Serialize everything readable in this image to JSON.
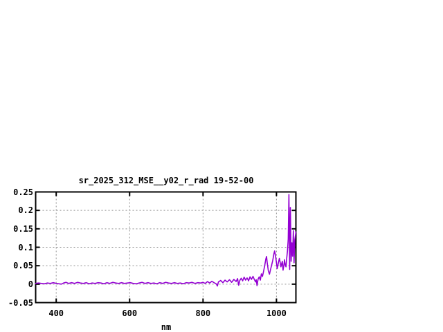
{
  "window": {
    "background_color": "#ffffff"
  },
  "chart_data": {
    "type": "line",
    "title": "sr_2025_312_MSE__y02_r_rad 19-52-00",
    "xlabel": "nm",
    "ylabel": "",
    "xlim": [
      344,
      1053
    ],
    "ylim": [
      -0.05,
      0.25
    ],
    "grid": true,
    "legend": "none",
    "line_color": "#9400d3",
    "border_color": "#000000",
    "grid_color": "#909090",
    "xticks": [
      {
        "v": 400,
        "label": "400"
      },
      {
        "v": 600,
        "label": "600"
      },
      {
        "v": 800,
        "label": "800"
      },
      {
        "v": 1000,
        "label": "1000"
      }
    ],
    "yticks": [
      {
        "v": -0.05,
        "label": "-0.05"
      },
      {
        "v": 0,
        "label": "0"
      },
      {
        "v": 0.05,
        "label": "0.05"
      },
      {
        "v": 0.1,
        "label": "0.1"
      },
      {
        "v": 0.15,
        "label": "0.15"
      },
      {
        "v": 0.2,
        "label": "0.2"
      },
      {
        "v": 0.25,
        "label": "0.25"
      }
    ],
    "series": [
      {
        "points": [
          [
            344,
            0.002
          ],
          [
            352,
            0.003
          ],
          [
            360,
            0.002
          ],
          [
            368,
            0.001
          ],
          [
            376,
            0.003
          ],
          [
            384,
            0.002
          ],
          [
            392,
            0.004
          ],
          [
            400,
            0.002
          ],
          [
            408,
            0.001
          ],
          [
            414,
            0.0
          ],
          [
            420,
            0.003
          ],
          [
            427,
            0.005
          ],
          [
            434,
            0.002
          ],
          [
            442,
            0.004
          ],
          [
            450,
            0.002
          ],
          [
            458,
            0.005
          ],
          [
            466,
            0.003
          ],
          [
            474,
            0.002
          ],
          [
            482,
            0.004
          ],
          [
            490,
            0.001
          ],
          [
            498,
            0.003
          ],
          [
            506,
            0.002
          ],
          [
            514,
            0.004
          ],
          [
            522,
            0.003
          ],
          [
            530,
            0.001
          ],
          [
            538,
            0.004
          ],
          [
            546,
            0.002
          ],
          [
            554,
            0.005
          ],
          [
            562,
            0.003
          ],
          [
            570,
            0.002
          ],
          [
            578,
            0.004
          ],
          [
            586,
            0.002
          ],
          [
            594,
            0.003
          ],
          [
            602,
            0.004
          ],
          [
            610,
            0.002
          ],
          [
            618,
            0.001
          ],
          [
            626,
            0.003
          ],
          [
            634,
            0.005
          ],
          [
            642,
            0.002
          ],
          [
            650,
            0.004
          ],
          [
            658,
            0.002
          ],
          [
            666,
            0.003
          ],
          [
            674,
            0.001
          ],
          [
            682,
            0.004
          ],
          [
            690,
            0.002
          ],
          [
            698,
            0.005
          ],
          [
            706,
            0.003
          ],
          [
            714,
            0.002
          ],
          [
            722,
            0.004
          ],
          [
            730,
            0.002
          ],
          [
            738,
            0.003
          ],
          [
            746,
            0.001
          ],
          [
            754,
            0.004
          ],
          [
            762,
            0.003
          ],
          [
            770,
            0.005
          ],
          [
            778,
            0.002
          ],
          [
            786,
            0.004
          ],
          [
            794,
            0.003
          ],
          [
            800,
            0.005
          ],
          [
            806,
            0.002
          ],
          [
            812,
            0.007
          ],
          [
            818,
            0.003
          ],
          [
            824,
            0.008
          ],
          [
            830,
            0.004
          ],
          [
            836,
            0.001
          ],
          [
            839,
            -0.005
          ],
          [
            842,
            0.006
          ],
          [
            848,
            0.01
          ],
          [
            854,
            0.004
          ],
          [
            860,
            0.011
          ],
          [
            866,
            0.006
          ],
          [
            872,
            0.012
          ],
          [
            878,
            0.005
          ],
          [
            884,
            0.013
          ],
          [
            890,
            0.007
          ],
          [
            894,
            0.015
          ],
          [
            897,
            -0.003
          ],
          [
            900,
            0.01
          ],
          [
            904,
            0.016
          ],
          [
            908,
            0.009
          ],
          [
            912,
            0.019
          ],
          [
            916,
            0.011
          ],
          [
            920,
            0.017
          ],
          [
            924,
            0.009
          ],
          [
            928,
            0.02
          ],
          [
            932,
            0.013
          ],
          [
            936,
            0.021
          ],
          [
            940,
            0.012
          ],
          [
            943,
            0.006
          ],
          [
            945,
            0.012
          ],
          [
            947,
            -0.004
          ],
          [
            950,
            0.014
          ],
          [
            953,
            0.02
          ],
          [
            956,
            0.011
          ],
          [
            959,
            0.028
          ],
          [
            962,
            0.021
          ],
          [
            965,
            0.035
          ],
          [
            968,
            0.05
          ],
          [
            971,
            0.068
          ],
          [
            973,
            0.075
          ],
          [
            975,
            0.057
          ],
          [
            978,
            0.036
          ],
          [
            981,
            0.027
          ],
          [
            984,
            0.04
          ],
          [
            987,
            0.052
          ],
          [
            990,
            0.065
          ],
          [
            993,
            0.082
          ],
          [
            995,
            0.09
          ],
          [
            997,
            0.08
          ],
          [
            1000,
            0.058
          ],
          [
            1002,
            0.042
          ],
          [
            1005,
            0.056
          ],
          [
            1008,
            0.07
          ],
          [
            1010,
            0.06
          ],
          [
            1012,
            0.047
          ],
          [
            1014,
            0.055
          ],
          [
            1016,
            0.062
          ],
          [
            1018,
            0.038
          ],
          [
            1020,
            0.05
          ],
          [
            1022,
            0.066
          ],
          [
            1024,
            0.052
          ],
          [
            1026,
            0.047
          ],
          [
            1028,
            0.07
          ],
          [
            1030,
            0.09
          ],
          [
            1032,
            0.122
          ],
          [
            1034,
            0.243
          ],
          [
            1036,
            0.04
          ],
          [
            1038,
            0.208
          ],
          [
            1040,
            0.062
          ],
          [
            1042,
            0.112
          ],
          [
            1044,
            0.076
          ],
          [
            1046,
            0.145
          ],
          [
            1048,
            0.058
          ],
          [
            1050,
            0.12
          ],
          [
            1053,
            0.142
          ]
        ]
      }
    ]
  }
}
